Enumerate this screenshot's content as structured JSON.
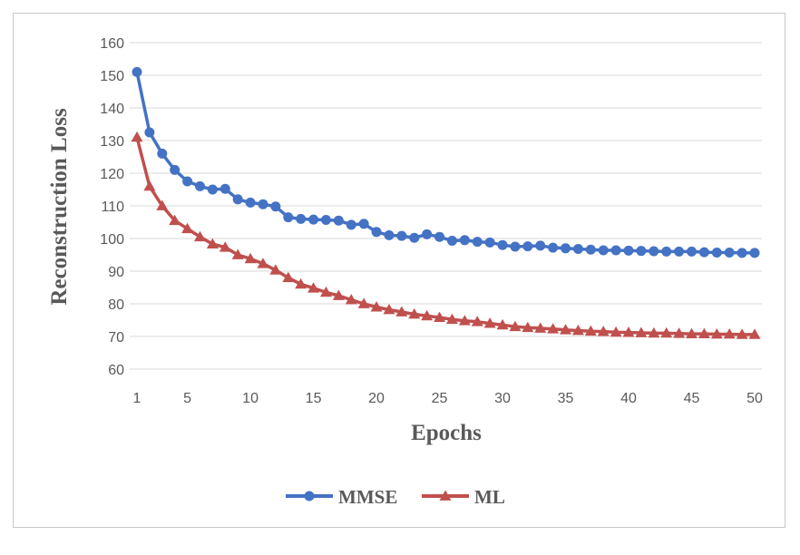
{
  "chart_data": {
    "type": "line",
    "title": "",
    "xlabel": "Epochs",
    "ylabel": "Reconstruction Loss",
    "ylim": [
      60,
      160
    ],
    "yticks": [
      60,
      70,
      80,
      90,
      100,
      110,
      120,
      130,
      140,
      150,
      160
    ],
    "xlim": [
      1,
      50
    ],
    "xticks": [
      1,
      5,
      10,
      15,
      20,
      25,
      30,
      35,
      40,
      45,
      50
    ],
    "grid": "horizontal",
    "legend_position": "bottom",
    "x": [
      1,
      2,
      3,
      4,
      5,
      6,
      7,
      8,
      9,
      10,
      11,
      12,
      13,
      14,
      15,
      16,
      17,
      18,
      19,
      20,
      21,
      22,
      23,
      24,
      25,
      26,
      27,
      28,
      29,
      30,
      31,
      32,
      33,
      34,
      35,
      36,
      37,
      38,
      39,
      40,
      41,
      42,
      43,
      44,
      45,
      46,
      47,
      48,
      49,
      50
    ],
    "series": [
      {
        "name": "MMSE",
        "color": "#4472c4",
        "marker": "circle",
        "values": [
          151,
          132.5,
          126,
          121,
          117.5,
          116,
          115,
          115.2,
          112,
          111,
          110.5,
          109.8,
          106.5,
          106,
          105.8,
          105.7,
          105.5,
          104.2,
          104.5,
          102,
          101,
          100.8,
          100.2,
          101.3,
          100.5,
          99.3,
          99.5,
          99,
          98.8,
          98,
          97.5,
          97.6,
          97.8,
          97.2,
          97,
          96.8,
          96.6,
          96.4,
          96.4,
          96.3,
          96.2,
          96.1,
          96,
          96,
          96,
          95.8,
          95.7,
          95.7,
          95.6,
          95.6
        ]
      },
      {
        "name": "ML",
        "color": "#c0504d",
        "marker": "triangle",
        "values": [
          131,
          116,
          110,
          105.5,
          103,
          100.5,
          98.3,
          97.3,
          95,
          93.8,
          92.3,
          90.3,
          88,
          86,
          84.8,
          83.5,
          82.5,
          81.2,
          80,
          79,
          78.2,
          77.5,
          76.8,
          76.3,
          75.8,
          75.2,
          74.8,
          74.5,
          74,
          73.5,
          73,
          72.7,
          72.5,
          72.3,
          72,
          71.8,
          71.6,
          71.5,
          71.3,
          71.2,
          71.1,
          71,
          71,
          70.9,
          70.8,
          70.8,
          70.7,
          70.7,
          70.6,
          70.6
        ]
      }
    ]
  }
}
